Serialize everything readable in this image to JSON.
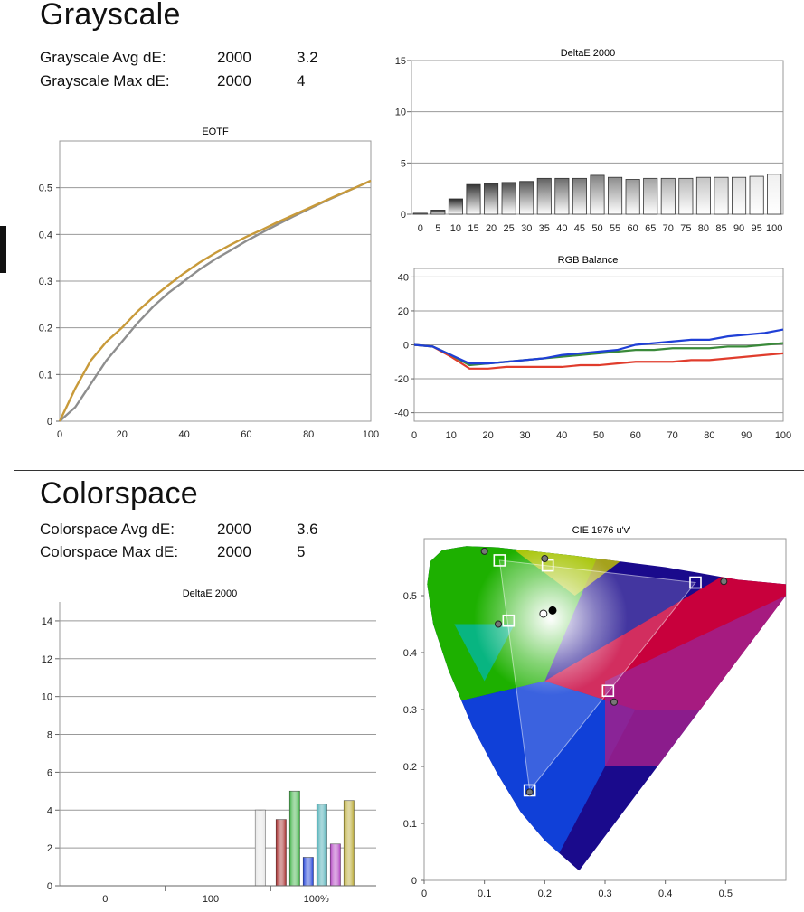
{
  "grayscale": {
    "title": "Grayscale",
    "stats": [
      {
        "label": "Grayscale Avg dE:",
        "standard": "2000",
        "value": "3.2"
      },
      {
        "label": "Grayscale Max dE:",
        "standard": "2000",
        "value": "4"
      }
    ]
  },
  "colorspace": {
    "title": "Colorspace",
    "stats": [
      {
        "label": "Colorspace Avg dE:",
        "standard": "2000",
        "value": "3.6"
      },
      {
        "label": "Colorspace Max dE:",
        "standard": "2000",
        "value": "5"
      }
    ]
  },
  "chart_data": [
    {
      "id": "eotf",
      "type": "line",
      "title": "EOTF",
      "xlim": [
        0,
        100
      ],
      "ylim": [
        0,
        0.6
      ],
      "x_ticks": [
        "0",
        "20",
        "40",
        "60",
        "80",
        "100"
      ],
      "y_ticks": [
        "0",
        "0.1",
        "0.2",
        "0.3",
        "0.4",
        "0.5"
      ],
      "grid": true,
      "series": [
        {
          "color": "#8e8e8e",
          "x": [
            0,
            5,
            10,
            15,
            20,
            25,
            30,
            35,
            40,
            45,
            50,
            55,
            60,
            65,
            70,
            75,
            80,
            85,
            90,
            95,
            100
          ],
          "y": [
            0,
            0.03,
            0.08,
            0.13,
            0.17,
            0.21,
            0.245,
            0.275,
            0.3,
            0.325,
            0.347,
            0.366,
            0.386,
            0.404,
            0.421,
            0.438,
            0.454,
            0.47,
            0.485,
            0.5,
            0.515
          ]
        },
        {
          "color": "#c89a3a",
          "x": [
            0,
            5,
            10,
            15,
            20,
            25,
            30,
            35,
            40,
            45,
            50,
            55,
            60,
            65,
            70,
            75,
            80,
            85,
            90,
            95,
            100
          ],
          "y": [
            0,
            0.07,
            0.13,
            0.17,
            0.2,
            0.235,
            0.265,
            0.292,
            0.317,
            0.34,
            0.36,
            0.378,
            0.395,
            0.41,
            0.426,
            0.441,
            0.456,
            0.471,
            0.486,
            0.5,
            0.515
          ]
        }
      ]
    },
    {
      "id": "grayscale-delta",
      "type": "bar",
      "title": "DeltaE 2000",
      "categories": [
        "0",
        "5",
        "10",
        "15",
        "20",
        "25",
        "30",
        "35",
        "40",
        "45",
        "50",
        "55",
        "60",
        "65",
        "70",
        "75",
        "80",
        "85",
        "90",
        "95",
        "100"
      ],
      "values": [
        0.1,
        0.4,
        1.5,
        2.9,
        3.0,
        3.1,
        3.2,
        3.5,
        3.5,
        3.5,
        3.8,
        3.6,
        3.4,
        3.5,
        3.5,
        3.5,
        3.6,
        3.6,
        3.6,
        3.7,
        3.9
      ],
      "ylim": [
        0,
        15
      ],
      "y_ticks": [
        "0",
        "5",
        "10",
        "15"
      ],
      "grid": true
    },
    {
      "id": "rgb-balance",
      "type": "line",
      "title": "RGB Balance",
      "xlim": [
        0,
        100
      ],
      "ylim": [
        -45,
        45
      ],
      "x_ticks": [
        "0",
        "10",
        "20",
        "30",
        "40",
        "50",
        "60",
        "70",
        "80",
        "90",
        "100"
      ],
      "y_ticks": [
        "-40",
        "-20",
        "0",
        "20",
        "40"
      ],
      "grid": true,
      "series": [
        {
          "color": "#e03c2c",
          "x": [
            0,
            5,
            10,
            15,
            20,
            25,
            30,
            35,
            40,
            45,
            50,
            55,
            60,
            65,
            70,
            75,
            80,
            85,
            90,
            95,
            100
          ],
          "y": [
            0,
            -1,
            -7,
            -14,
            -14,
            -13,
            -13,
            -13,
            -13,
            -12,
            -12,
            -11,
            -10,
            -10,
            -10,
            -9,
            -9,
            -8,
            -7,
            -6,
            -5
          ]
        },
        {
          "color": "#3a8a3a",
          "x": [
            0,
            5,
            10,
            15,
            20,
            25,
            30,
            35,
            40,
            45,
            50,
            55,
            60,
            65,
            70,
            75,
            80,
            85,
            90,
            95,
            100
          ],
          "y": [
            0,
            -1,
            -6,
            -12,
            -11,
            -10,
            -9,
            -8,
            -7,
            -6,
            -5,
            -4,
            -3,
            -3,
            -2,
            -2,
            -2,
            -1,
            -1,
            0,
            1
          ]
        },
        {
          "color": "#1f3fd6",
          "x": [
            0,
            5,
            10,
            15,
            20,
            25,
            30,
            35,
            40,
            45,
            50,
            55,
            60,
            65,
            70,
            75,
            80,
            85,
            90,
            95,
            100
          ],
          "y": [
            0,
            -1,
            -6,
            -11,
            -11,
            -10,
            -9,
            -8,
            -6,
            -5,
            -4,
            -3,
            0,
            1,
            2,
            3,
            3,
            5,
            6,
            7,
            9
          ]
        }
      ]
    },
    {
      "id": "colorspace-delta",
      "type": "bar",
      "title": "DeltaE 2000",
      "categories": [
        "0",
        "100",
        "100%"
      ],
      "ylim": [
        0,
        15
      ],
      "y_ticks": [
        "0",
        "2",
        "4",
        "6",
        "8",
        "10",
        "12",
        "14"
      ],
      "grid": true,
      "bars": [
        {
          "group": "100",
          "color": "#e6e6e6",
          "value": 4.0
        },
        {
          "group": "100%",
          "color": "#a52a2a",
          "value": 3.5
        },
        {
          "group": "100%",
          "color": "#3cb043",
          "value": 5.0
        },
        {
          "group": "100%",
          "color": "#1f3fd6",
          "value": 1.5
        },
        {
          "group": "100%",
          "color": "#3fa8b0",
          "value": 4.3
        },
        {
          "group": "100%",
          "color": "#b040c0",
          "value": 2.2
        },
        {
          "group": "100%",
          "color": "#b8a830",
          "value": 4.5
        }
      ]
    },
    {
      "id": "cie-1976",
      "type": "scatter",
      "title": "CIE 1976 u'v'",
      "xlim": [
        0,
        0.6
      ],
      "ylim": [
        0,
        0.6
      ],
      "x_ticks": [
        "0",
        "0.1",
        "0.2",
        "0.3",
        "0.4",
        "0.5"
      ],
      "y_ticks": [
        "0",
        "0.1",
        "0.2",
        "0.3",
        "0.4",
        "0.5"
      ],
      "gamut_triangle": [
        [
          0.45,
          0.523
        ],
        [
          0.125,
          0.562
        ],
        [
          0.175,
          0.158
        ]
      ],
      "targets": [
        {
          "u": 0.45,
          "v": 0.523
        },
        {
          "u": 0.125,
          "v": 0.562
        },
        {
          "u": 0.175,
          "v": 0.158
        },
        {
          "u": 0.14,
          "v": 0.456
        },
        {
          "u": 0.305,
          "v": 0.333
        },
        {
          "u": 0.205,
          "v": 0.553
        }
      ],
      "measured": [
        {
          "u": 0.497,
          "v": 0.525
        },
        {
          "u": 0.1,
          "v": 0.578
        },
        {
          "u": 0.175,
          "v": 0.155
        },
        {
          "u": 0.123,
          "v": 0.45
        },
        {
          "u": 0.315,
          "v": 0.313
        },
        {
          "u": 0.2,
          "v": 0.565
        }
      ],
      "white_target": {
        "u": 0.1978,
        "v": 0.4683
      },
      "white_measured": {
        "u": 0.213,
        "v": 0.474
      }
    }
  ]
}
